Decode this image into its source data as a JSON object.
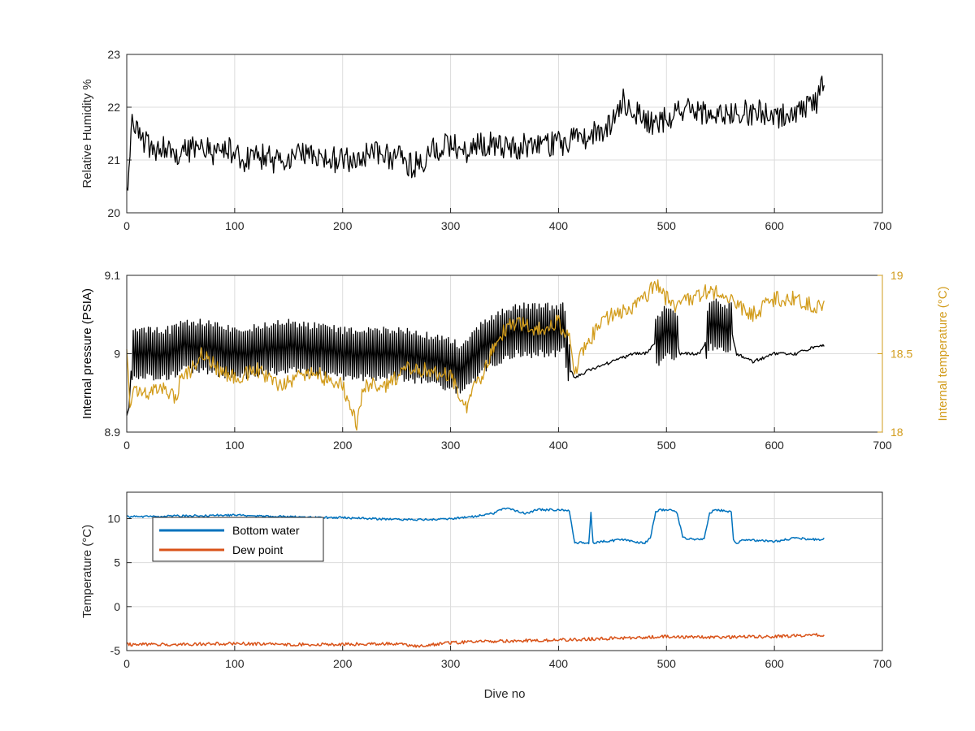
{
  "figure": {
    "colors": {
      "axis": "#262626",
      "grid": "#dcdcdc",
      "humidity": "#000000",
      "pressure": "#000000",
      "internal_temp": "#d29c1c",
      "bottom_water": "#0072bd",
      "dew_point": "#d95319"
    }
  },
  "chart_data": [
    {
      "type": "line",
      "panel": "top",
      "xlabel": "",
      "ylabel": "Relative Humidity %",
      "xlim": [
        0,
        700
      ],
      "ylim": [
        20,
        23
      ],
      "xticks": [
        0,
        100,
        200,
        300,
        400,
        500,
        600,
        700
      ],
      "yticks": [
        20,
        21,
        22,
        23
      ],
      "grid": true,
      "series": [
        {
          "name": "",
          "color_key": "humidity",
          "x": [
            0,
            2,
            5,
            8,
            12,
            18,
            25,
            35,
            45,
            55,
            65,
            75,
            85,
            95,
            105,
            120,
            135,
            150,
            165,
            180,
            195,
            210,
            225,
            240,
            255,
            265,
            275,
            285,
            300,
            315,
            330,
            345,
            360,
            375,
            390,
            405,
            420,
            435,
            450,
            460,
            470,
            480,
            490,
            500,
            510,
            520,
            535,
            550,
            565,
            580,
            595,
            605,
            615,
            625,
            635,
            640,
            646
          ],
          "y": [
            20.4,
            20.9,
            21.9,
            21.6,
            21.4,
            21.3,
            21.2,
            21.2,
            21.1,
            21.2,
            21.2,
            21.2,
            21.1,
            21.2,
            21.0,
            21.1,
            21.0,
            21.0,
            21.1,
            21.0,
            21.0,
            21.0,
            21.1,
            21.1,
            21.0,
            20.9,
            21.0,
            21.2,
            21.3,
            21.2,
            21.3,
            21.3,
            21.2,
            21.3,
            21.3,
            21.3,
            21.4,
            21.5,
            21.7,
            22.1,
            21.9,
            21.8,
            21.6,
            21.8,
            21.9,
            22.0,
            21.9,
            21.8,
            21.9,
            21.9,
            21.9,
            21.8,
            21.9,
            22.0,
            22.0,
            22.1,
            22.6
          ],
          "noise_amp": 0.25
        }
      ]
    },
    {
      "type": "line",
      "panel": "middle",
      "xlabel": "",
      "ylabel": "Internal pressure (PSIA)",
      "ylabel_right": "Internal temperature (°C)",
      "xlim": [
        0,
        700
      ],
      "ylim": [
        8.9,
        9.1
      ],
      "ylim_right": [
        18,
        19
      ],
      "xticks": [
        0,
        100,
        200,
        300,
        400,
        500,
        600,
        700
      ],
      "yticks": [
        8.9,
        9,
        9.1
      ],
      "yticks_right": [
        18,
        18.5,
        19
      ],
      "grid": true,
      "series": [
        {
          "name": "",
          "axis": "left",
          "color_key": "pressure",
          "x": [
            0,
            2,
            5,
            20,
            40,
            50,
            70,
            100,
            150,
            200,
            250,
            290,
            310,
            330,
            360,
            400,
            405,
            410,
            415,
            430,
            450,
            470,
            480,
            488,
            500,
            510,
            512,
            530,
            535,
            540,
            560,
            565,
            580,
            600,
            620,
            640,
            646
          ],
          "y": [
            8.92,
            8.93,
            9.0,
            9.0,
            9.0,
            9.01,
            9.01,
            9.0,
            9.01,
            9.0,
            9.0,
            8.99,
            8.98,
            9.01,
            9.03,
            9.03,
            9.04,
            8.98,
            8.97,
            8.98,
            8.99,
            9.0,
            9.0,
            9.01,
            9.03,
            9.02,
            9.0,
            9.0,
            9.01,
            9.04,
            9.03,
            9.0,
            8.99,
            9.0,
            9.0,
            9.01,
            9.01
          ],
          "osc_amp": 0.035,
          "osc_ranges": [
            [
              5,
              410
            ],
            [
              490,
              510
            ],
            [
              537,
              560
            ]
          ]
        },
        {
          "name": "",
          "axis": "right",
          "color_key": "internal_temp",
          "x": [
            0,
            3,
            6,
            20,
            35,
            45,
            50,
            60,
            70,
            85,
            100,
            120,
            140,
            160,
            175,
            190,
            200,
            213,
            220,
            240,
            260,
            280,
            300,
            315,
            320,
            330,
            340,
            350,
            360,
            380,
            400,
            410,
            415,
            420,
            430,
            440,
            450,
            470,
            480,
            490,
            500,
            510,
            520,
            540,
            560,
            565,
            580,
            590,
            600,
            620,
            640,
            646
          ],
          "y": [
            18.5,
            18.2,
            18.25,
            18.25,
            18.3,
            18.2,
            18.35,
            18.4,
            18.5,
            18.4,
            18.35,
            18.4,
            18.3,
            18.35,
            18.4,
            18.3,
            18.3,
            18.05,
            18.3,
            18.3,
            18.4,
            18.4,
            18.35,
            18.15,
            18.3,
            18.35,
            18.55,
            18.65,
            18.7,
            18.65,
            18.7,
            18.6,
            18.35,
            18.5,
            18.6,
            18.7,
            18.75,
            18.8,
            18.85,
            18.95,
            18.85,
            18.8,
            18.85,
            18.9,
            18.85,
            18.8,
            18.75,
            18.8,
            18.85,
            18.85,
            18.8,
            18.8
          ],
          "noise_amp": 0.05
        }
      ]
    },
    {
      "type": "line",
      "panel": "bottom",
      "xlabel": "Dive no",
      "ylabel": "Temperature (°C)",
      "xlim": [
        0,
        700
      ],
      "ylim": [
        -5,
        13
      ],
      "xticks": [
        0,
        100,
        200,
        300,
        400,
        500,
        600,
        700
      ],
      "yticks": [
        -5,
        0,
        5,
        10
      ],
      "grid": true,
      "legend_placement": "top-left",
      "series": [
        {
          "name": "Bottom water",
          "color_key": "bottom_water",
          "x": [
            0,
            50,
            100,
            150,
            200,
            250,
            290,
            320,
            340,
            350,
            370,
            380,
            400,
            410,
            415,
            420,
            428,
            430,
            432,
            440,
            460,
            475,
            480,
            485,
            490,
            495,
            505,
            510,
            515,
            520,
            530,
            535,
            540,
            545,
            560,
            562,
            565,
            570,
            600,
            620,
            640,
            646
          ],
          "y": [
            10.2,
            10.3,
            10.4,
            10.2,
            10.1,
            9.9,
            9.9,
            10.2,
            10.6,
            11.2,
            10.6,
            11.0,
            11.0,
            10.9,
            7.2,
            7.3,
            7.2,
            10.6,
            7.2,
            7.4,
            7.6,
            7.3,
            7.2,
            7.8,
            10.8,
            11.0,
            11.0,
            10.6,
            7.9,
            7.7,
            7.6,
            7.8,
            10.6,
            11.0,
            10.8,
            7.5,
            7.1,
            7.6,
            7.4,
            7.8,
            7.6,
            7.7
          ],
          "noise_amp": 0.12
        },
        {
          "name": "Dew point",
          "color_key": "dew_point",
          "x": [
            0,
            50,
            100,
            150,
            200,
            250,
            270,
            300,
            350,
            400,
            450,
            500,
            550,
            600,
            646
          ],
          "y": [
            -4.3,
            -4.3,
            -4.2,
            -4.3,
            -4.3,
            -4.2,
            -4.5,
            -4.1,
            -3.9,
            -3.8,
            -3.6,
            -3.4,
            -3.5,
            -3.4,
            -3.2
          ],
          "noise_amp": 0.18
        }
      ]
    }
  ]
}
